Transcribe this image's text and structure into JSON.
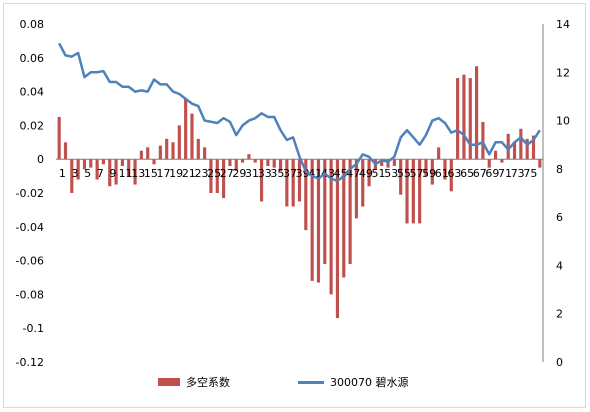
{
  "chart_data": {
    "type": "bar+line",
    "title": "",
    "x": [
      1,
      2,
      3,
      4,
      5,
      6,
      7,
      8,
      9,
      10,
      11,
      12,
      13,
      14,
      15,
      16,
      17,
      18,
      19,
      20,
      21,
      22,
      23,
      24,
      25,
      26,
      27,
      28,
      29,
      30,
      31,
      32,
      33,
      34,
      35,
      36,
      37,
      38,
      39,
      40,
      41,
      42,
      43,
      44,
      45,
      46,
      47,
      48,
      49,
      50,
      51,
      52,
      53,
      54,
      55,
      56,
      57,
      58,
      59,
      60,
      61,
      62,
      63,
      64,
      65,
      66,
      67,
      68,
      69,
      70,
      71,
      72,
      73,
      74,
      75,
      76,
      77
    ],
    "x_tick_labels": [
      "1",
      "3",
      "5",
      "7",
      "9",
      "11",
      "13",
      "15",
      "17",
      "19",
      "21",
      "23",
      "25",
      "27",
      "29",
      "31",
      "33",
      "35",
      "37",
      "39",
      "41",
      "43",
      "45",
      "47",
      "49",
      "51",
      "53",
      "55",
      "57",
      "59",
      "61",
      "63",
      "65",
      "67",
      "69",
      "71",
      "73",
      "75"
    ],
    "series": [
      {
        "name": "多空系数",
        "type": "bar",
        "axis": "left",
        "values": [
          0.025,
          0.01,
          -0.02,
          -0.012,
          -0.006,
          -0.005,
          -0.012,
          -0.003,
          -0.016,
          -0.015,
          -0.004,
          -0.01,
          -0.015,
          0.005,
          0.007,
          -0.003,
          0.008,
          0.012,
          0.01,
          0.02,
          0.036,
          0.027,
          0.012,
          0.007,
          -0.02,
          -0.02,
          -0.023,
          -0.004,
          -0.007,
          -0.002,
          0.003,
          -0.002,
          -0.025,
          -0.004,
          -0.005,
          -0.007,
          -0.028,
          -0.028,
          -0.025,
          -0.042,
          -0.072,
          -0.073,
          -0.062,
          -0.08,
          -0.094,
          -0.07,
          -0.062,
          -0.035,
          -0.028,
          -0.016,
          -0.006,
          -0.004,
          -0.005,
          -0.004,
          -0.021,
          -0.038,
          -0.038,
          -0.038,
          -0.01,
          -0.015,
          0.007,
          -0.012,
          -0.019,
          0.048,
          0.05,
          0.048,
          0.055,
          0.022,
          -0.005,
          0.005,
          -0.002,
          0.015,
          0.01,
          0.018,
          0.012,
          0.014,
          -0.005
        ]
      },
      {
        "name": "300070 碧水源",
        "type": "line",
        "axis": "right",
        "values": [
          13.2,
          12.7,
          12.65,
          12.8,
          11.8,
          12.0,
          12.0,
          12.05,
          11.6,
          11.6,
          11.4,
          11.4,
          11.2,
          11.25,
          11.2,
          11.7,
          11.5,
          11.5,
          11.2,
          11.1,
          10.9,
          10.7,
          10.6,
          10.0,
          9.95,
          9.9,
          10.1,
          9.95,
          9.4,
          9.8,
          10.0,
          10.1,
          10.3,
          10.15,
          10.15,
          9.6,
          9.2,
          9.3,
          8.5,
          7.9,
          7.7,
          7.6,
          7.8,
          7.6,
          7.5,
          7.7,
          8.0,
          8.2,
          8.6,
          8.5,
          8.2,
          8.35,
          8.3,
          8.5,
          9.3,
          9.6,
          9.3,
          9.0,
          9.4,
          10.0,
          10.1,
          9.9,
          9.5,
          9.6,
          9.4,
          9.0,
          9.0,
          9.1,
          8.6,
          9.1,
          9.1,
          8.8,
          9.1,
          9.3,
          9.0,
          9.2,
          9.6
        ]
      }
    ],
    "y_left": {
      "min": -0.12,
      "max": 0.08,
      "ticks": [
        "0.08",
        "0.06",
        "0.04",
        "0.02",
        "0",
        "-0.02",
        "-0.04",
        "-0.06",
        "-0.08",
        "-0.1",
        "-0.12"
      ]
    },
    "y_right": {
      "min": 0,
      "max": 14,
      "ticks": [
        "14",
        "12",
        "10",
        "8",
        "6",
        "4",
        "2",
        "0"
      ]
    },
    "grid": false,
    "legend_position": "bottom",
    "colors": {
      "bars": "#c0504d",
      "line": "#4f81bd"
    }
  },
  "legend": {
    "bar_label": "多空系数",
    "line_label": "300070 碧水源"
  }
}
